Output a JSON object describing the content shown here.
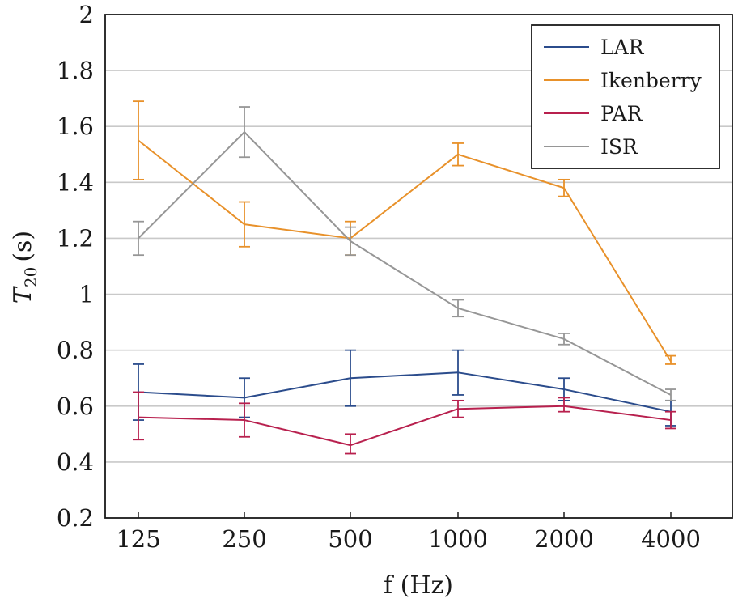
{
  "chart_data": {
    "type": "line",
    "title": "",
    "xlabel": "f (Hz)",
    "ylabel_main": "T",
    "ylabel_sub": "20",
    "ylabel_unit": "(s)",
    "categories": [
      "125",
      "250",
      "500",
      "1000",
      "2000",
      "4000"
    ],
    "ylim": [
      0.2,
      2
    ],
    "yticks": [
      "0.2",
      "0.4",
      "0.6",
      "0.8",
      "1",
      "1.2",
      "1.4",
      "1.6",
      "1.8",
      "2"
    ],
    "ytick_values": [
      0.2,
      0.4,
      0.6,
      0.8,
      1.0,
      1.2,
      1.4,
      1.6,
      1.8,
      2.0
    ],
    "grid": "horizontal",
    "legend_position": "top-right",
    "series": [
      {
        "name": "LAR",
        "color": "#2b4c8c",
        "values": [
          0.65,
          0.63,
          0.7,
          0.72,
          0.66,
          0.58
        ],
        "err_low": [
          0.55,
          0.56,
          0.6,
          0.64,
          0.62,
          0.53
        ],
        "err_high": [
          0.75,
          0.7,
          0.8,
          0.8,
          0.7,
          0.62
        ]
      },
      {
        "name": "Ikenberry",
        "color": "#e8912a",
        "values": [
          1.55,
          1.25,
          1.2,
          1.5,
          1.38,
          0.76
        ],
        "err_low": [
          1.41,
          1.17,
          1.14,
          1.46,
          1.35,
          0.75
        ],
        "err_high": [
          1.69,
          1.33,
          1.26,
          1.54,
          1.41,
          0.78
        ]
      },
      {
        "name": "PAR",
        "color": "#b8204e",
        "values": [
          0.56,
          0.55,
          0.46,
          0.59,
          0.6,
          0.55
        ],
        "err_low": [
          0.48,
          0.49,
          0.43,
          0.56,
          0.58,
          0.52
        ],
        "err_high": [
          0.65,
          0.61,
          0.5,
          0.62,
          0.63,
          0.58
        ]
      },
      {
        "name": "ISR",
        "color": "#969696",
        "values": [
          1.2,
          1.58,
          1.19,
          0.95,
          0.84,
          0.64
        ],
        "err_low": [
          1.14,
          1.49,
          1.14,
          0.92,
          0.82,
          0.62
        ],
        "err_high": [
          1.26,
          1.67,
          1.24,
          0.98,
          0.86,
          0.66
        ]
      }
    ]
  }
}
